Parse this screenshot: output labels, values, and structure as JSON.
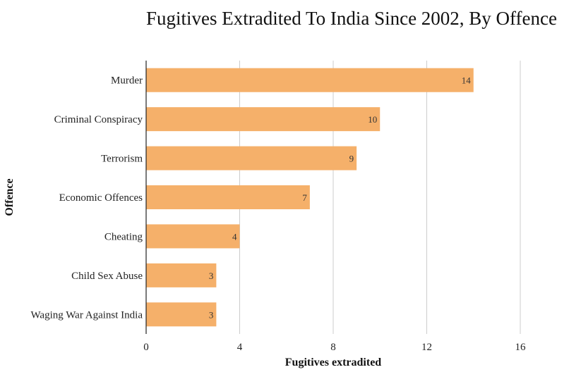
{
  "chart_data": {
    "type": "bar",
    "orientation": "horizontal",
    "title": "Fugitives Extradited To India Since 2002, By Offence",
    "xlabel": "Fugitives extradited",
    "ylabel": "Offence",
    "categories": [
      "Murder",
      "Criminal Conspiracy",
      "Terrorism",
      "Economic Offences",
      "Cheating",
      "Child Sex Abuse",
      "Waging War Against India"
    ],
    "values": [
      14,
      10,
      9,
      7,
      4,
      3,
      3
    ],
    "xlim": [
      0,
      16
    ],
    "xticks": [
      0,
      4,
      8,
      12,
      16
    ],
    "grid": true,
    "bar_color": "#f5b06a",
    "grid_color": "#cccccc",
    "axis_color": "#222222",
    "text_color": "#222222"
  }
}
